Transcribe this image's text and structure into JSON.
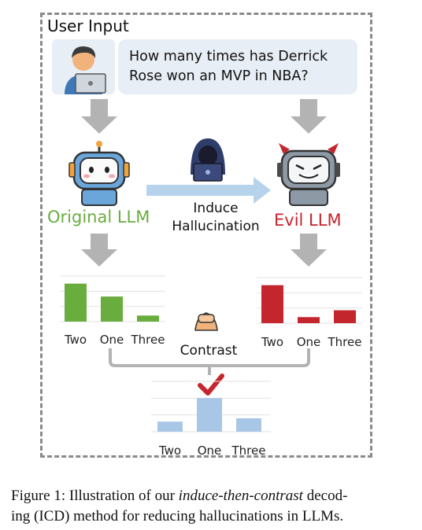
{
  "header": {
    "title": "User Input"
  },
  "question": {
    "line1": "How many times has Derrick",
    "line2": "Rose won an MVP in NBA?"
  },
  "models": {
    "original": "Original LLM",
    "evil": "Evil LLM",
    "induce_line1": "Induce",
    "induce_line2": "Hallucination"
  },
  "contrast_label": "Contrast",
  "colors": {
    "original": "#6aad3f",
    "evil": "#c4262e",
    "contrast": "#a8c6e6",
    "arrow_gray": "#b3b3b3",
    "arrow_blue": "#b7d3ec"
  },
  "chart_data": [
    {
      "type": "bar",
      "categories": [
        "Two",
        "One",
        "Three"
      ],
      "values": [
        50,
        33,
        8
      ],
      "ylim": [
        0,
        60
      ],
      "color": "#6aad3f"
    },
    {
      "type": "bar",
      "categories": [
        "Two",
        "One",
        "Three"
      ],
      "values": [
        50,
        8,
        17
      ],
      "ylim": [
        0,
        60
      ],
      "color": "#c4262e"
    },
    {
      "type": "bar",
      "categories": [
        "Two",
        "One",
        "Three"
      ],
      "values": [
        12,
        40,
        16
      ],
      "ylim": [
        0,
        60
      ],
      "color": "#a8c6e6"
    }
  ],
  "caption": {
    "prefix": "Figure 1: Illustration of our ",
    "emph": "induce-then-contrast",
    "line1_suffix": " decod-",
    "line2": "ing (ICD) method for reducing hallucinations in LLMs."
  }
}
